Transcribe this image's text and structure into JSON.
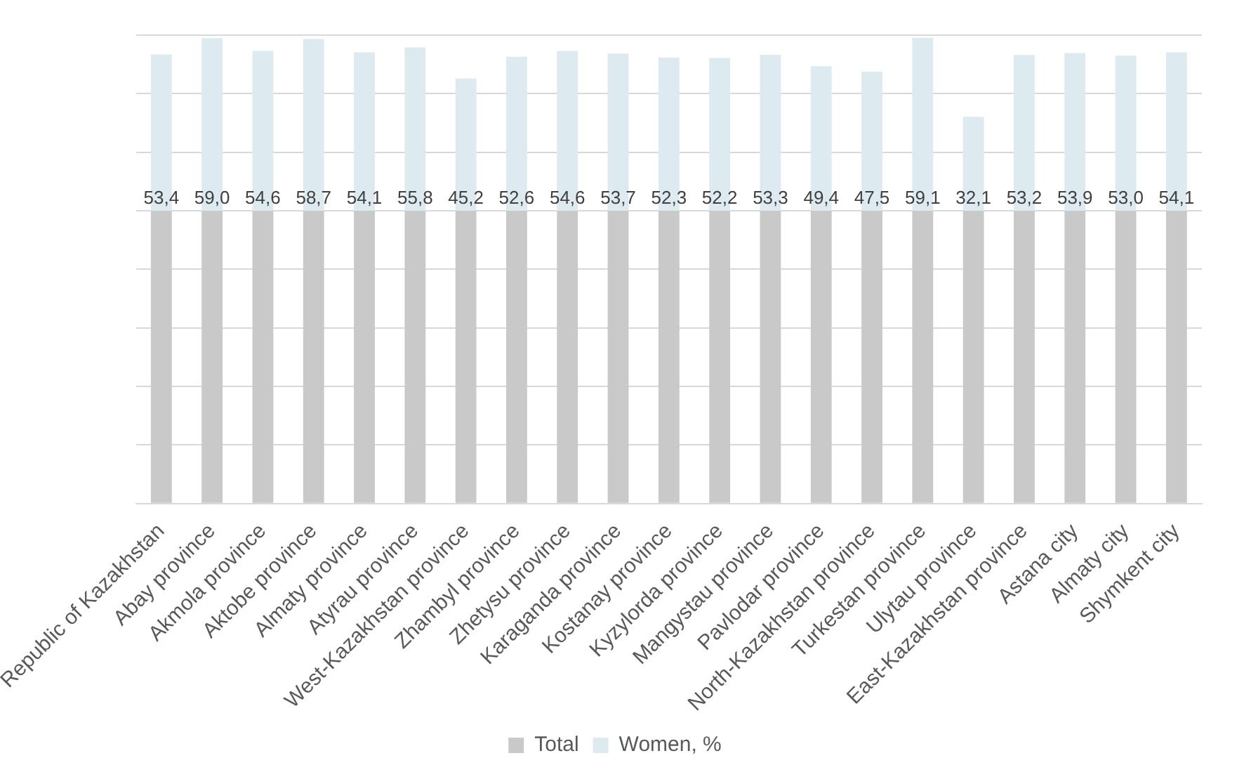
{
  "chart_data": {
    "type": "bar",
    "stacked": true,
    "categories": [
      "Republic of Kazakhstan",
      "Abay province",
      "Akmola province",
      "Aktobe province",
      "Almaty province",
      "Atyrau province",
      "West-Kazakhstan province",
      "Zhambyl province",
      "Zhetysu province",
      "Karaganda province",
      "Kostanay province",
      "Kyzylorda province",
      "Mangystau province",
      "Pavlodar province",
      "North-Kazakhstan province",
      "Turkestan province",
      "Ulytau province",
      "East-Kazakhstan province",
      "Astana city",
      "Almaty city",
      "Shymkent city"
    ],
    "series": [
      {
        "name": "Total",
        "color": "#c9c9c9",
        "values": [
          100,
          100,
          100,
          100,
          100,
          100,
          100,
          100,
          100,
          100,
          100,
          100,
          100,
          100,
          100,
          100,
          100,
          100,
          100,
          100,
          100
        ]
      },
      {
        "name": "Women, %",
        "color": "#ddebf1",
        "values": [
          53.4,
          59.0,
          54.6,
          58.7,
          54.1,
          55.8,
          45.2,
          52.6,
          54.6,
          53.7,
          52.3,
          52.2,
          53.3,
          49.4,
          47.5,
          59.1,
          32.1,
          53.2,
          53.9,
          53.0,
          54.1
        ],
        "value_labels": [
          "53,4",
          "59,0",
          "54,6",
          "58,7",
          "54,1",
          "55,8",
          "45,2",
          "52,6",
          "54,6",
          "53,7",
          "52,3",
          "52,2",
          "53,3",
          "49,4",
          "47,5",
          "59,1",
          "32,1",
          "53,2",
          "53,9",
          "53,0",
          "54,1"
        ]
      }
    ],
    "ylim": [
      0,
      160
    ],
    "yticks": [
      {
        "value": 0,
        "label": null
      },
      {
        "value": 20,
        "label": null
      },
      {
        "value": 40,
        "label": null
      },
      {
        "value": 60,
        "label": null
      },
      {
        "value": 80,
        "label": null
      },
      {
        "value": 100,
        "label": null
      },
      {
        "value": 120,
        "label": null
      },
      {
        "value": 140,
        "label": null
      },
      {
        "value": 160,
        "label": null
      }
    ],
    "grid": "y",
    "legend": "bottom",
    "tick_labels": "x"
  }
}
